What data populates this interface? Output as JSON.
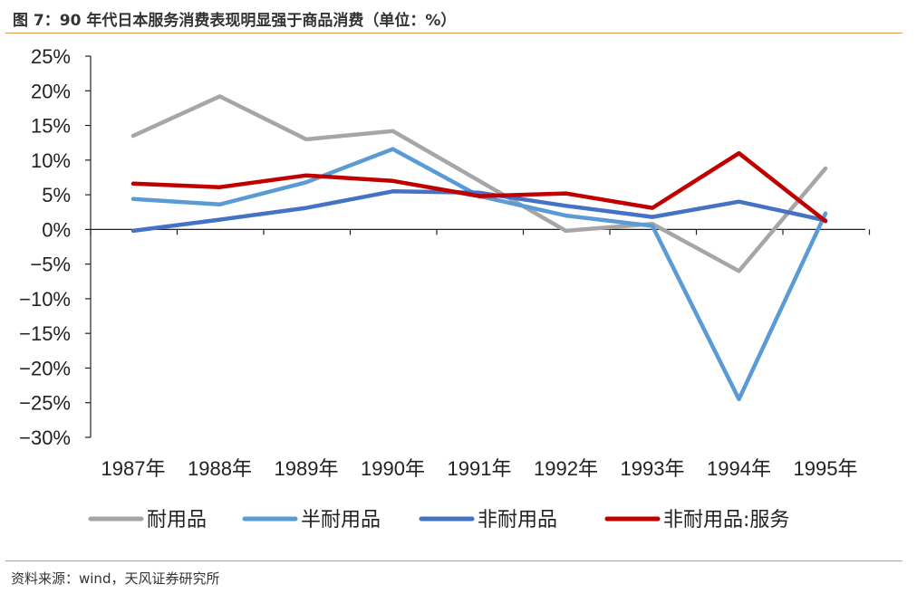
{
  "header": {
    "title": "图 7：90 年代日本服务消费表现明显强于商品消费（单位：%）"
  },
  "footer": {
    "source": "资料来源：wind，天风证券研究所"
  },
  "chart_data": {
    "type": "line",
    "categories": [
      "1987年",
      "1988年",
      "1989年",
      "1990年",
      "1991年",
      "1992年",
      "1993年",
      "1994年",
      "1995年"
    ],
    "ylim": [
      -30,
      25
    ],
    "ytick_values": [
      25,
      20,
      15,
      10,
      5,
      0,
      -5,
      -10,
      -15,
      -20,
      -25,
      -30
    ],
    "ytick_labels": [
      "25%",
      "20%",
      "15%",
      "10%",
      "5%",
      "0%",
      "−5%",
      "−10%",
      "−15%",
      "−20%",
      "−25%",
      "−30%"
    ],
    "grid": false,
    "legend_position": "bottom",
    "series": [
      {
        "name": "耐用品",
        "color": "#a6a6a6",
        "values": [
          13.5,
          19.2,
          13.0,
          14.2,
          7.0,
          -0.2,
          0.8,
          -6.0,
          8.8
        ]
      },
      {
        "name": "半耐用品",
        "color": "#5b9bd5",
        "values": [
          4.4,
          3.6,
          6.8,
          11.6,
          4.8,
          2.0,
          0.5,
          -24.5,
          2.3
        ]
      },
      {
        "name": "非耐用品",
        "color": "#4472c4",
        "values": [
          -0.2,
          1.4,
          3.1,
          5.5,
          5.3,
          3.4,
          1.8,
          4.0,
          1.3
        ]
      },
      {
        "name": "非耐用品:服务",
        "color": "#c00000",
        "values": [
          6.6,
          6.1,
          7.8,
          7.0,
          4.8,
          5.2,
          3.1,
          11.0,
          1.2
        ]
      }
    ]
  }
}
